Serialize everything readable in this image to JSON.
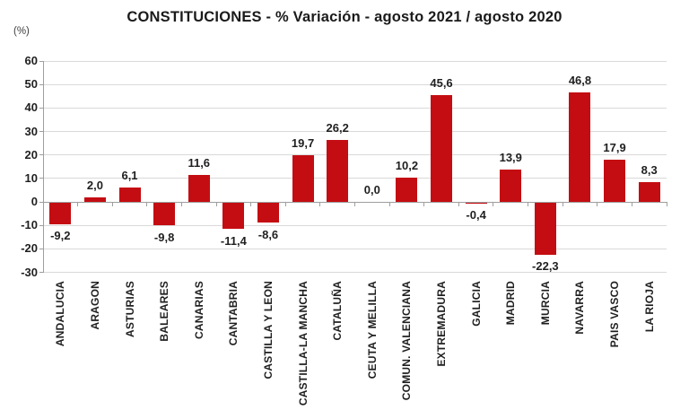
{
  "chart_data": {
    "type": "bar",
    "title": "CONSTITUCIONES - % Variación - agosto 2021 / agosto 2020",
    "y_unit": "(%)",
    "categories": [
      "ANDALUCIA",
      "ARAGON",
      "ASTURIAS",
      "BALEARES",
      "CANARIAS",
      "CANTABRIA",
      "CASTILLA Y LEON",
      "CASTILLA-LA MANCHA",
      "CATALUÑA",
      "CEUTA Y MELILLA",
      "COMUN. VALENCIANA",
      "EXTREMADURA",
      "GALICIA",
      "MADRID",
      "MURCIA",
      "NAVARRA",
      "PAIS VASCO",
      "LA RIOJA"
    ],
    "values": [
      -9.2,
      2.0,
      6.1,
      -9.8,
      11.6,
      -11.4,
      -8.6,
      19.7,
      26.2,
      0.0,
      10.2,
      45.6,
      -0.4,
      13.9,
      -22.3,
      46.8,
      17.9,
      8.3
    ],
    "value_labels": [
      "-9,2",
      "2,0",
      "6,1",
      "-9,8",
      "11,6",
      "-11,4",
      "-8,6",
      "19,7",
      "26,2",
      "0,0",
      "10,2",
      "45,6",
      "-0,4",
      "13,9",
      "-22,3",
      "46,8",
      "17,9",
      "8,3"
    ],
    "ylim": [
      -30,
      60
    ],
    "ytick_step": 10,
    "yticks": [
      60,
      50,
      40,
      30,
      20,
      10,
      0,
      -10,
      -20,
      -30
    ],
    "decimal_separator": ",",
    "grid": true,
    "legend": false,
    "xlabel": "",
    "ylabel": "(%)",
    "colors": {
      "bar": "#c40d12",
      "grid": "#d9d9d9",
      "axis": "#9e9e9e",
      "text": "#1f1f1f",
      "title": "#1a1a1a"
    }
  }
}
